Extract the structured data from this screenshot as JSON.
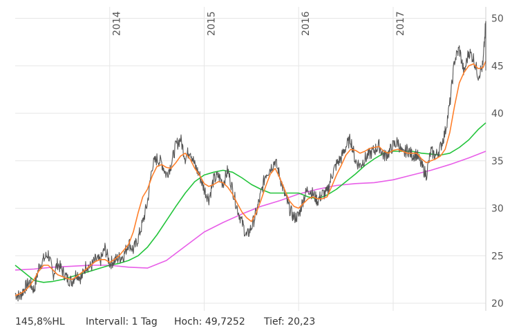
{
  "chart_data": {
    "type": "line",
    "title": "",
    "xlabel": "",
    "ylabel": "",
    "ylim": [
      19.2,
      51.2
    ],
    "xlim": [
      2013.0,
      2017.98
    ],
    "yticks": [
      20,
      25,
      30,
      35,
      40,
      45,
      50
    ],
    "year_ticks": [
      {
        "label": "2014",
        "x": 2014.0
      },
      {
        "label": "2015",
        "x": 2015.0
      },
      {
        "label": "2016",
        "x": 2016.0
      },
      {
        "label": "2017",
        "x": 2017.0
      }
    ],
    "grid": true,
    "series": [
      {
        "color": "#555555",
        "style": "price",
        "x": [
          2013.0,
          2013.05,
          2013.1,
          2013.15,
          2013.2,
          2013.25,
          2013.3,
          2013.35,
          2013.4,
          2013.45,
          2013.5,
          2013.55,
          2013.6,
          2013.65,
          2013.7,
          2013.75,
          2013.8,
          2013.85,
          2013.9,
          2013.95,
          2014.0,
          2014.05,
          2014.1,
          2014.15,
          2014.2,
          2014.25,
          2014.3,
          2014.35,
          2014.4,
          2014.45,
          2014.5,
          2014.55,
          2014.6,
          2014.65,
          2014.7,
          2014.75,
          2014.8,
          2014.85,
          2014.9,
          2014.95,
          2015.0,
          2015.05,
          2015.1,
          2015.15,
          2015.2,
          2015.25,
          2015.3,
          2015.35,
          2015.4,
          2015.45,
          2015.5,
          2015.55,
          2015.6,
          2015.65,
          2015.7,
          2015.75,
          2015.8,
          2015.85,
          2015.9,
          2015.95,
          2016.0,
          2016.05,
          2016.1,
          2016.15,
          2016.2,
          2016.25,
          2016.3,
          2016.35,
          2016.4,
          2016.45,
          2016.5,
          2016.55,
          2016.6,
          2016.65,
          2016.7,
          2016.75,
          2016.8,
          2016.85,
          2016.9,
          2016.95,
          2017.0,
          2017.05,
          2017.1,
          2017.15,
          2017.2,
          2017.25,
          2017.3,
          2017.35,
          2017.4,
          2017.45,
          2017.5,
          2017.55,
          2017.6,
          2017.65,
          2017.7,
          2017.75,
          2017.8,
          2017.85,
          2017.9,
          2017.95,
          2017.98
        ],
        "y": [
          21.0,
          20.7,
          21.6,
          22.2,
          21.4,
          23.8,
          24.6,
          25.2,
          23.0,
          24.2,
          23.4,
          22.6,
          22.3,
          23.2,
          22.6,
          24.0,
          23.8,
          24.6,
          24.4,
          25.8,
          24.2,
          24.5,
          24.8,
          25.0,
          26.4,
          25.6,
          26.8,
          28.5,
          30.6,
          34.5,
          35.2,
          34.8,
          33.5,
          34.6,
          36.6,
          37.3,
          35.3,
          36.2,
          34.5,
          33.5,
          32.0,
          31.0,
          33.0,
          33.4,
          32.6,
          34.0,
          32.0,
          30.0,
          28.5,
          27.0,
          28.0,
          29.5,
          31.5,
          33.6,
          34.2,
          35.0,
          33.4,
          31.5,
          30.0,
          29.0,
          29.2,
          31.0,
          32.1,
          31.5,
          30.8,
          31.5,
          31.6,
          33.5,
          34.6,
          35.3,
          36.5,
          37.3,
          35.0,
          34.5,
          35.2,
          35.7,
          36.1,
          36.6,
          35.5,
          35.8,
          36.6,
          37.0,
          35.6,
          36.2,
          35.6,
          35.7,
          34.5,
          33.5,
          36.0,
          35.5,
          36.4,
          38.0,
          41.0,
          45.6,
          46.8,
          44.2,
          46.5,
          45.8,
          44.0,
          45.0,
          49.7
        ]
      },
      {
        "color": "#ff7f2a",
        "style": "short-ma",
        "x": [
          2013.0,
          2013.05,
          2013.1,
          2013.15,
          2013.2,
          2013.25,
          2013.3,
          2013.35,
          2013.4,
          2013.45,
          2013.5,
          2013.55,
          2013.6,
          2013.65,
          2013.7,
          2013.75,
          2013.8,
          2013.85,
          2013.9,
          2013.95,
          2014.0,
          2014.05,
          2014.1,
          2014.15,
          2014.2,
          2014.25,
          2014.3,
          2014.35,
          2014.4,
          2014.45,
          2014.5,
          2014.55,
          2014.6,
          2014.65,
          2014.7,
          2014.75,
          2014.8,
          2014.85,
          2014.9,
          2014.95,
          2015.0,
          2015.05,
          2015.1,
          2015.15,
          2015.2,
          2015.25,
          2015.3,
          2015.35,
          2015.4,
          2015.45,
          2015.5,
          2015.55,
          2015.6,
          2015.65,
          2015.7,
          2015.75,
          2015.8,
          2015.85,
          2015.9,
          2015.95,
          2016.0,
          2016.05,
          2016.1,
          2016.15,
          2016.2,
          2016.25,
          2016.3,
          2016.35,
          2016.4,
          2016.45,
          2016.5,
          2016.55,
          2016.6,
          2016.65,
          2016.7,
          2016.75,
          2016.8,
          2016.85,
          2016.9,
          2016.95,
          2017.0,
          2017.05,
          2017.1,
          2017.15,
          2017.2,
          2017.25,
          2017.3,
          2017.35,
          2017.4,
          2017.45,
          2017.5,
          2017.55,
          2017.6,
          2017.65,
          2017.7,
          2017.75,
          2017.8,
          2017.85,
          2017.9,
          2017.95,
          2017.98
        ],
        "y": [
          20.8,
          21.0,
          21.3,
          21.8,
          22.5,
          23.4,
          24.0,
          24.0,
          23.5,
          23.0,
          22.8,
          22.6,
          22.5,
          22.8,
          23.2,
          23.6,
          24.0,
          24.4,
          24.6,
          24.6,
          24.3,
          24.6,
          25.0,
          25.6,
          26.2,
          27.5,
          29.5,
          31.2,
          32.0,
          33.4,
          34.4,
          34.6,
          34.3,
          34.2,
          34.8,
          35.5,
          35.8,
          35.2,
          34.2,
          33.5,
          32.6,
          32.3,
          32.5,
          32.8,
          32.7,
          32.2,
          31.5,
          30.5,
          29.6,
          29.0,
          28.6,
          29.5,
          30.8,
          32.3,
          33.6,
          34.2,
          33.2,
          32.0,
          30.8,
          30.2,
          30.0,
          30.5,
          31.0,
          31.2,
          31.0,
          31.0,
          31.2,
          32.3,
          33.5,
          34.5,
          35.6,
          36.2,
          36.1,
          35.8,
          36.0,
          36.3,
          36.4,
          36.5,
          36.0,
          35.8,
          36.1,
          36.2,
          36.0,
          35.8,
          35.8,
          35.8,
          35.2,
          34.8,
          35.0,
          35.2,
          35.5,
          36.2,
          38.0,
          40.8,
          43.2,
          44.3,
          45.0,
          45.2,
          44.7,
          44.8,
          45.5
        ]
      },
      {
        "color": "#22c43a",
        "style": "mid-ma",
        "x": [
          2013.0,
          2013.1,
          2013.2,
          2013.3,
          2013.4,
          2013.5,
          2013.6,
          2013.7,
          2013.8,
          2013.9,
          2014.0,
          2014.1,
          2014.2,
          2014.3,
          2014.4,
          2014.5,
          2014.6,
          2014.7,
          2014.8,
          2014.9,
          2015.0,
          2015.1,
          2015.2,
          2015.3,
          2015.4,
          2015.5,
          2015.6,
          2015.7,
          2015.8,
          2015.9,
          2016.0,
          2016.1,
          2016.2,
          2016.3,
          2016.4,
          2016.5,
          2016.6,
          2016.7,
          2016.8,
          2016.9,
          2017.0,
          2017.1,
          2017.2,
          2017.3,
          2017.4,
          2017.5,
          2017.6,
          2017.7,
          2017.8,
          2017.9,
          2017.98
        ],
        "y": [
          24.0,
          23.2,
          22.4,
          22.2,
          22.3,
          22.5,
          22.8,
          23.1,
          23.4,
          23.7,
          24.0,
          24.2,
          24.5,
          25.0,
          25.9,
          27.2,
          28.7,
          30.2,
          31.6,
          32.8,
          33.5,
          33.8,
          34.0,
          33.8,
          33.2,
          32.5,
          32.0,
          31.6,
          31.6,
          31.6,
          31.6,
          31.2,
          31.0,
          31.4,
          32.0,
          32.8,
          33.6,
          34.5,
          35.2,
          35.8,
          36.0,
          36.0,
          36.0,
          35.8,
          35.7,
          35.6,
          35.8,
          36.4,
          37.2,
          38.3,
          39.0
        ]
      },
      {
        "color": "#e85ee8",
        "style": "long-ma",
        "x": [
          2013.0,
          2013.2,
          2013.4,
          2013.6,
          2013.8,
          2014.0,
          2014.2,
          2014.4,
          2014.6,
          2014.8,
          2015.0,
          2015.2,
          2015.4,
          2015.6,
          2015.8,
          2016.0,
          2016.2,
          2016.4,
          2016.6,
          2016.8,
          2017.0,
          2017.2,
          2017.4,
          2017.6,
          2017.8,
          2017.98
        ],
        "y": [
          23.5,
          23.6,
          23.8,
          23.9,
          24.0,
          24.0,
          23.8,
          23.7,
          24.5,
          26.0,
          27.5,
          28.5,
          29.4,
          30.2,
          30.8,
          31.5,
          32.0,
          32.4,
          32.6,
          32.7,
          33.0,
          33.5,
          34.0,
          34.6,
          35.3,
          36.0
        ]
      }
    ]
  },
  "footer": {
    "range": "145,8%HL",
    "interval": "Intervall: 1 Tag",
    "high": "Hoch: 49,7252",
    "low": "Tief:  20,23"
  }
}
